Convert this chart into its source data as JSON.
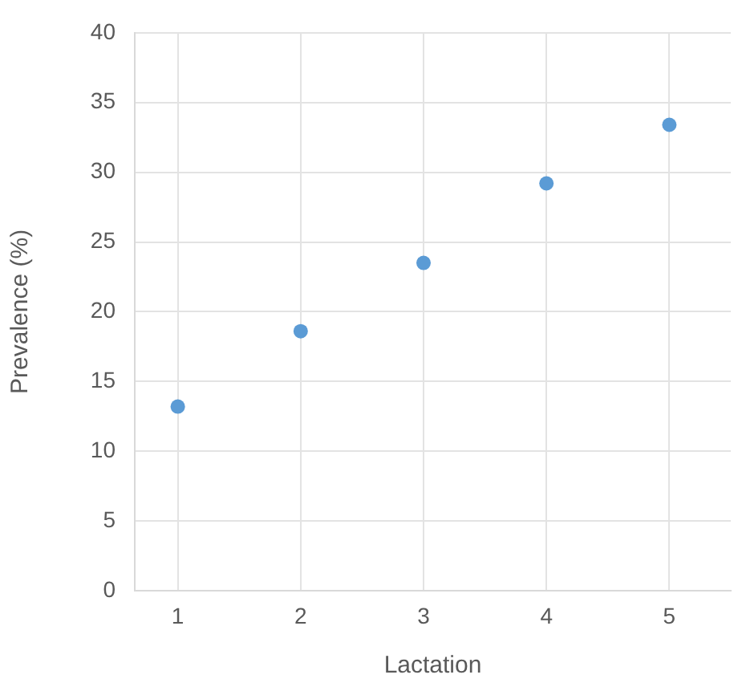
{
  "chart_data": {
    "type": "scatter",
    "xlabel": "Lactation",
    "ylabel": "Prevalence (%)",
    "x": [
      1,
      2,
      3,
      4,
      5
    ],
    "series": [
      {
        "color": "#5b9bd5",
        "values": [
          13.2,
          18.6,
          23.5,
          29.2,
          33.4
        ]
      }
    ],
    "xlim": [
      0.65,
      5.5
    ],
    "xticks": [
      1,
      2,
      3,
      4,
      5
    ],
    "ylim": [
      0,
      40
    ],
    "yticks": [
      0,
      5,
      10,
      15,
      20,
      25,
      30,
      35,
      40
    ],
    "grid": true,
    "legend": false,
    "marker": "circle"
  }
}
